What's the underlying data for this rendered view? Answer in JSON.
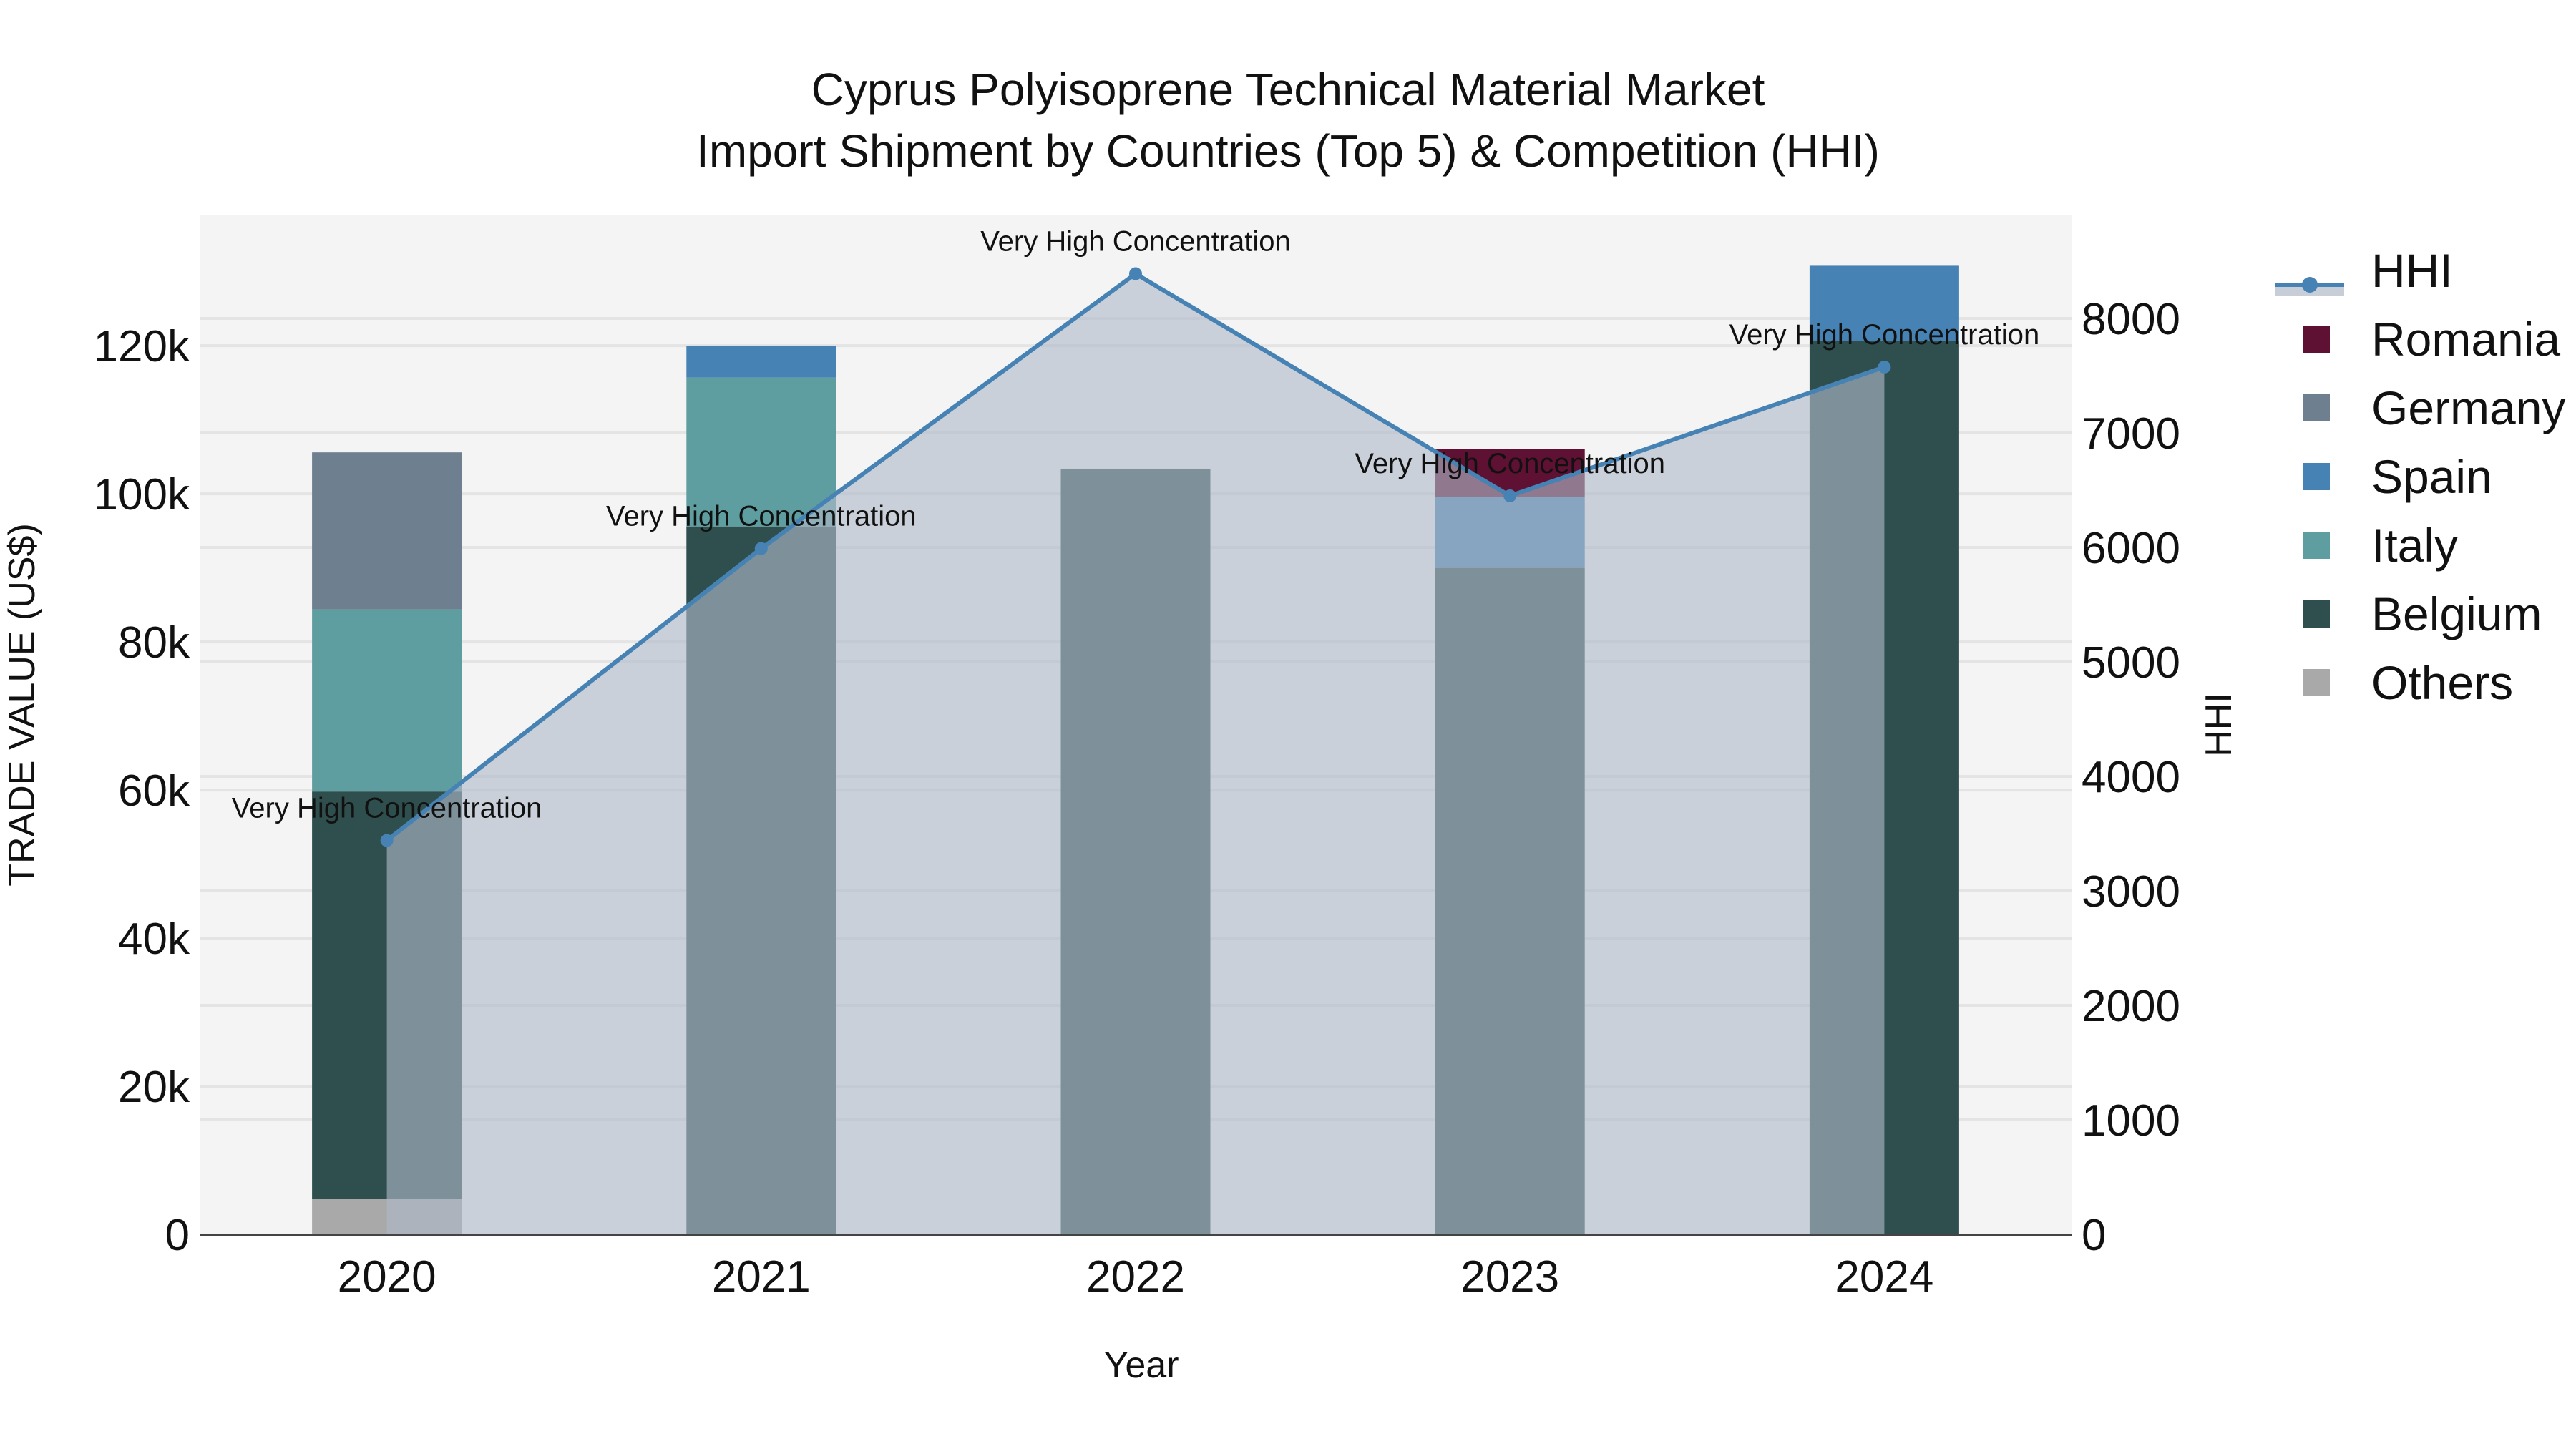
{
  "title": {
    "line1": "Cyprus Polyisoprene Technical Material Market",
    "line2": "Import Shipment by Countries (Top 5) & Competition (HHI)"
  },
  "axes": {
    "x_title": "Year",
    "y_left_title": "TRADE VALUE (US$)",
    "y_right_title": "HHI",
    "y_left_ticks": [
      "0",
      "20k",
      "40k",
      "60k",
      "80k",
      "100k",
      "120k"
    ],
    "y_left_tick_values": [
      0,
      20000,
      40000,
      60000,
      80000,
      100000,
      120000
    ],
    "y_right_ticks": [
      "0",
      "1000",
      "2000",
      "3000",
      "4000",
      "5000",
      "6000",
      "7000",
      "8000"
    ],
    "y_right_tick_values": [
      0,
      1000,
      2000,
      3000,
      4000,
      5000,
      6000,
      7000,
      8000
    ]
  },
  "legend": {
    "items": [
      {
        "label": "HHI",
        "type": "line",
        "color": "#4682B4"
      },
      {
        "label": "Romania",
        "type": "bar",
        "color": "#5E1133"
      },
      {
        "label": "Germany",
        "type": "bar",
        "color": "#6E7F8F"
      },
      {
        "label": "Spain",
        "type": "bar",
        "color": "#4682B4"
      },
      {
        "label": "Italy",
        "type": "bar",
        "color": "#5F9EA0"
      },
      {
        "label": "Belgium",
        "type": "bar",
        "color": "#2F4F4F"
      },
      {
        "label": "Others",
        "type": "bar",
        "color": "#A9A9A9"
      }
    ]
  },
  "colors": {
    "plot_bg": "#F4F4F4",
    "grid": "#E4E4E4",
    "hhi_line": "#4682B4",
    "hhi_fill": "rgba(176,186,200,0.62)",
    "axis_line": "#444444"
  },
  "annotations": {
    "label": "Very High Concentration"
  },
  "chart_data": {
    "type": "bar",
    "subtype": "stacked bar + line (secondary axis)",
    "title": "Cyprus Polyisoprene Technical Material Market — Import Shipment by Countries (Top 5) & Competition (HHI)",
    "xlabel": "Year",
    "ylabel": "TRADE VALUE (US$)",
    "y2label": "HHI",
    "categories": [
      "2020",
      "2021",
      "2022",
      "2023",
      "2024"
    ],
    "ylim": [
      0,
      137700
    ],
    "y2lim": [
      0,
      8906
    ],
    "legend_position": "right",
    "grid": true,
    "series": [
      {
        "name": "Others",
        "type": "bar",
        "color": "#A9A9A9",
        "values": [
          4800,
          0,
          0,
          0,
          0
        ]
      },
      {
        "name": "Belgium",
        "type": "bar",
        "color": "#2F4F4F",
        "values": [
          55000,
          95600,
          103400,
          90000,
          120600
        ]
      },
      {
        "name": "Italy",
        "type": "bar",
        "color": "#5F9EA0",
        "values": [
          24600,
          20100,
          0,
          0,
          0
        ]
      },
      {
        "name": "Spain",
        "type": "bar",
        "color": "#4682B4",
        "values": [
          0,
          4300,
          0,
          9600,
          10200
        ]
      },
      {
        "name": "Germany",
        "type": "bar",
        "color": "#6E7F8F",
        "values": [
          21200,
          0,
          0,
          0,
          0
        ]
      },
      {
        "name": "Romania",
        "type": "bar",
        "color": "#5E1133",
        "values": [
          0,
          0,
          0,
          6500,
          0
        ]
      },
      {
        "name": "HHI",
        "type": "line",
        "axis": "y2",
        "color": "#4682B4",
        "fill": "tozeroy",
        "values": [
          3440,
          5990,
          8390,
          6450,
          7575
        ]
      }
    ],
    "annotations": [
      {
        "x": "2020",
        "text": "Very High Concentration"
      },
      {
        "x": "2021",
        "text": "Very High Concentration"
      },
      {
        "x": "2022",
        "text": "Very High Concentration"
      },
      {
        "x": "2023",
        "text": "Very High Concentration"
      },
      {
        "x": "2024",
        "text": "Very High Concentration"
      }
    ]
  }
}
